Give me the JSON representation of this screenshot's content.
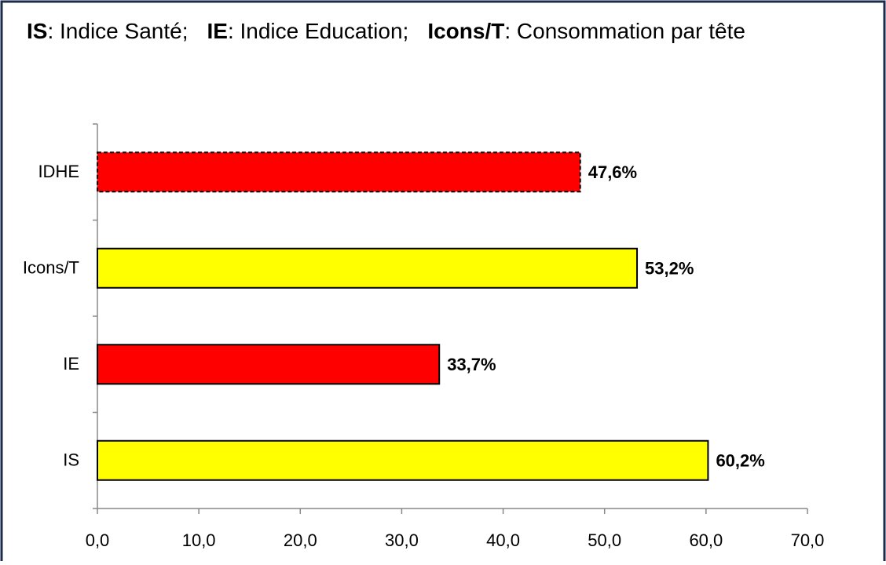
{
  "chart_data": {
    "type": "barh",
    "title_parts": [
      {
        "text": "IS",
        "bold": true
      },
      {
        "text": ": Indice Santé;",
        "bold": false
      },
      {
        "text": "IE",
        "bold": true
      },
      {
        "text": ": Indice Education;",
        "bold": false
      },
      {
        "text": "Icons/T",
        "bold": true
      },
      {
        "text": ": Consommation par tête",
        "bold": false
      }
    ],
    "categories": [
      "IDHE",
      "Icons/T",
      "IE",
      "IS"
    ],
    "values": [
      47.6,
      53.2,
      33.7,
      60.2
    ],
    "value_labels": [
      "47,6%",
      "53,2%",
      "33,7%",
      "60,2%"
    ],
    "colors": [
      "#ff0000",
      "#ffff00",
      "#ff0000",
      "#ffff00"
    ],
    "border_styles": [
      "dashed",
      "solid",
      "solid",
      "solid"
    ],
    "xlim": [
      0,
      70
    ],
    "xticks": [
      {
        "value": 0,
        "label": "0,0"
      },
      {
        "value": 10,
        "label": "10,0"
      },
      {
        "value": 20,
        "label": "20,0"
      },
      {
        "value": 30,
        "label": "30,0"
      },
      {
        "value": 40,
        "label": "40,0"
      },
      {
        "value": 50,
        "label": "50,0"
      },
      {
        "value": 60,
        "label": "60,0"
      },
      {
        "value": 70,
        "label": "70,0"
      }
    ],
    "grid": false
  }
}
